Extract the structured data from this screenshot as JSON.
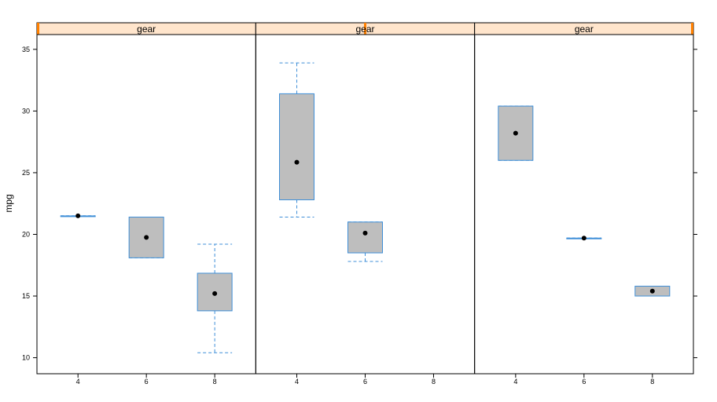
{
  "chart_data": {
    "type": "boxplot",
    "layout": "trellis, 3 panels in one row",
    "ylabel": "mpg",
    "xlabel": "",
    "ylim": [
      8.7,
      36.2
    ],
    "yticks": [
      10,
      15,
      20,
      25,
      30,
      35
    ],
    "x_categories": [
      "4",
      "6",
      "8"
    ],
    "colors": {
      "box_fill": "#bebebe",
      "box_border": "#3f8fd8",
      "whisker": "#3f8fd8",
      "median_dot": "#000000",
      "strip_fill": "#ffe5cc",
      "strip_marker": "#ff8000"
    },
    "panels": [
      {
        "strip_label": "gear",
        "strip_level": 0.0,
        "boxes": [
          {
            "x": "4",
            "min": 21.5,
            "q1": 21.5,
            "median": 21.5,
            "q3": 21.5,
            "max": 21.5
          },
          {
            "x": "6",
            "min": 18.1,
            "q1": 18.1,
            "median": 19.75,
            "q3": 21.4,
            "max": 21.4
          },
          {
            "x": "8",
            "min": 10.4,
            "q1": 13.8,
            "median": 15.2,
            "q3": 16.85,
            "max": 19.2
          }
        ]
      },
      {
        "strip_label": "gear",
        "strip_level": 0.5,
        "boxes": [
          {
            "x": "4",
            "min": 21.4,
            "q1": 22.8,
            "median": 25.85,
            "q3": 31.4,
            "max": 33.9
          },
          {
            "x": "6",
            "min": 17.8,
            "q1": 18.5,
            "median": 20.1,
            "q3": 21.0,
            "max": 21.0
          }
        ]
      },
      {
        "strip_label": "gear",
        "strip_level": 1.0,
        "boxes": [
          {
            "x": "4",
            "min": 26.0,
            "q1": 26.0,
            "median": 28.2,
            "q3": 30.4,
            "max": 30.4
          },
          {
            "x": "6",
            "min": 19.7,
            "q1": 19.7,
            "median": 19.7,
            "q3": 19.7,
            "max": 19.7
          },
          {
            "x": "8",
            "min": 15.0,
            "q1": 15.0,
            "median": 15.4,
            "q3": 15.8,
            "max": 15.8
          }
        ]
      }
    ]
  }
}
